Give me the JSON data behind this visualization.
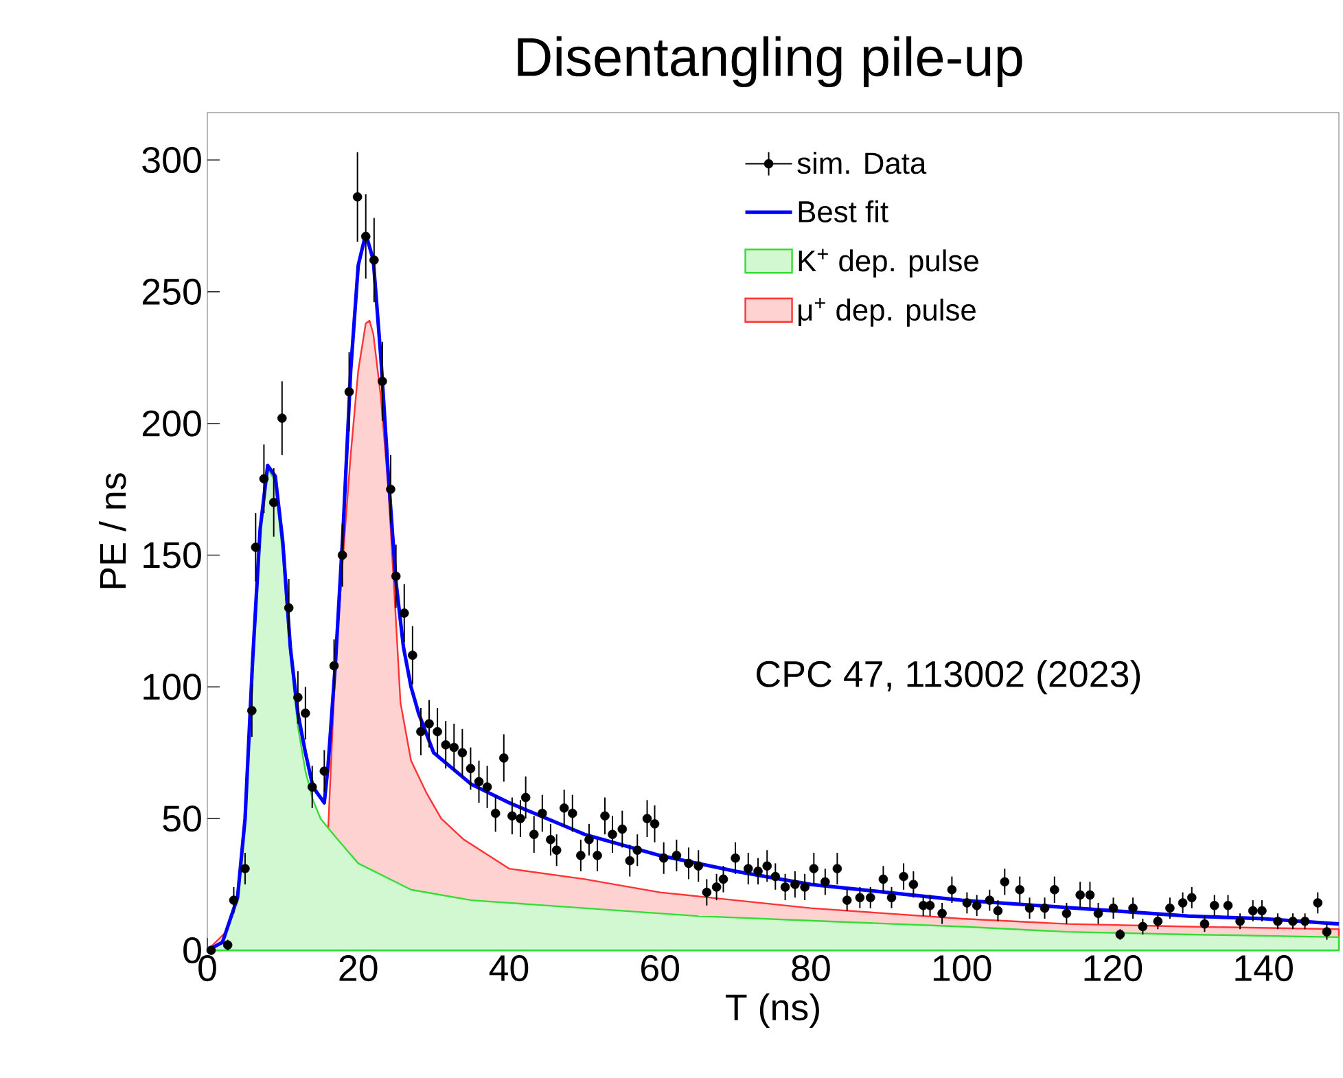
{
  "chart_data": {
    "type": "scatter",
    "title": "Disentangling pile-up",
    "xlabel": "T (ns)",
    "ylabel": "PE / ns",
    "annotations": [
      "CPC 47, 113002 (2023)"
    ],
    "xlim": [
      0,
      150
    ],
    "ylim": [
      0,
      318
    ],
    "xticks": [
      0,
      20,
      40,
      60,
      80,
      100,
      120,
      140
    ],
    "yticks": [
      0,
      50,
      100,
      150,
      200,
      250,
      300
    ],
    "legend": "top right",
    "series": [
      {
        "name": "sim. Data",
        "marker": "circle",
        "color": "#000000",
        "x": [
          0.5,
          2.7,
          3.5,
          5,
          5.9,
          6.4,
          7.5,
          8.8,
          9.9,
          10.8,
          12,
          13,
          13.9,
          15.5,
          16.8,
          17.9,
          18.8,
          19.9,
          21,
          22.1,
          23.2,
          24.3,
          25,
          26.1,
          27.2,
          28.3,
          29.4,
          30.5,
          31.6,
          32.7,
          33.8,
          34.9,
          36,
          37.1,
          38.2,
          39.3,
          40.4,
          41.5,
          42.2,
          43.3,
          44.4,
          45.5,
          46.3,
          47.3,
          48.4,
          49.5,
          50.6,
          51.7,
          52.7,
          53.7,
          55,
          56,
          57,
          58.3,
          59.3,
          60.5,
          62.2,
          63.8,
          65.1,
          66.2,
          67.5,
          68.4,
          70,
          71.7,
          73,
          74.2,
          75.3,
          76.6,
          77.9,
          79.2,
          80.4,
          81.9,
          83.5,
          84.8,
          86.5,
          87.9,
          89.6,
          90.7,
          92.3,
          93.6,
          94.9,
          95.8,
          97.4,
          98.7,
          100.7,
          102,
          103.7,
          104.8,
          105.7,
          107.7,
          109,
          111,
          112.3,
          113.9,
          115.7,
          117,
          118.1,
          120.1,
          121,
          122.7,
          124,
          126,
          127.6,
          129.3,
          130.5,
          132.2,
          133.5,
          135.3,
          136.9,
          138.6,
          139.8,
          141.9,
          143.9,
          145.5,
          147.2,
          148.4
        ],
        "values": [
          0,
          2,
          19,
          31,
          91,
          153,
          179,
          170,
          202,
          130,
          96,
          90,
          62,
          68,
          108,
          150,
          212,
          286,
          271,
          262,
          216,
          175,
          142,
          128,
          112,
          83,
          86,
          83,
          78,
          77,
          75,
          69,
          64,
          62,
          52,
          73,
          51,
          50,
          58,
          44,
          52,
          42,
          38,
          54,
          52,
          36,
          42,
          36,
          51,
          44,
          46,
          34,
          38,
          50,
          48,
          35,
          36,
          33,
          32,
          22,
          24,
          27,
          35,
          31,
          30,
          32,
          28,
          24,
          25,
          24,
          31,
          26,
          31,
          19,
          20,
          20,
          27,
          20,
          28,
          25,
          17,
          17,
          14,
          23,
          18,
          17,
          19,
          15,
          26,
          23,
          16,
          16,
          23,
          14,
          21,
          21,
          14,
          16,
          6,
          16,
          9,
          11,
          16,
          18,
          20,
          10,
          17,
          17,
          11,
          15,
          15,
          11,
          11,
          11,
          18,
          7
        ],
        "errors": [
          1,
          2,
          5,
          6,
          10,
          13,
          13,
          13,
          14,
          11,
          10,
          10,
          8,
          8,
          10,
          12,
          15,
          17,
          16,
          16,
          15,
          13,
          12,
          11,
          11,
          9,
          9,
          9,
          9,
          9,
          9,
          8,
          8,
          8,
          7,
          9,
          7,
          7,
          8,
          7,
          7,
          6,
          6,
          7,
          7,
          6,
          6,
          6,
          7,
          7,
          7,
          6,
          6,
          7,
          7,
          6,
          6,
          6,
          6,
          5,
          5,
          5,
          6,
          6,
          5,
          6,
          5,
          5,
          5,
          5,
          6,
          5,
          6,
          4,
          4,
          4,
          5,
          4,
          5,
          5,
          4,
          4,
          4,
          5,
          4,
          4,
          4,
          4,
          5,
          5,
          4,
          4,
          5,
          4,
          5,
          5,
          4,
          4,
          2,
          4,
          3,
          3,
          4,
          4,
          4,
          3,
          4,
          4,
          3,
          4,
          4,
          3,
          3,
          3,
          4,
          3
        ]
      },
      {
        "name": "Best fit",
        "type": "line",
        "color": "#0000ff",
        "x": [
          0,
          2,
          4,
          5,
          6,
          7,
          8,
          9,
          10,
          11,
          12,
          13,
          14,
          15.5,
          16,
          17,
          18,
          19,
          20,
          21,
          22,
          23,
          24,
          25,
          26,
          27,
          28,
          30,
          35,
          40,
          50,
          60,
          70,
          80,
          90,
          100,
          110,
          120,
          130,
          140,
          150
        ],
        "values": [
          0,
          3,
          20,
          50,
          110,
          160,
          184,
          180,
          155,
          115,
          90,
          75,
          62,
          56,
          70,
          110,
          160,
          220,
          260,
          272,
          262,
          225,
          180,
          140,
          115,
          100,
          90,
          75,
          63,
          56,
          44,
          36,
          30,
          25,
          22,
          19,
          17,
          15,
          13,
          12,
          10
        ]
      },
      {
        "name": "K$^{+}$ dep. pulse",
        "type": "area",
        "color": "#33dd33",
        "x": [
          0,
          2,
          4,
          5,
          6,
          7,
          8,
          9,
          10,
          11,
          12,
          13,
          14,
          15,
          17,
          20,
          27,
          35,
          50,
          65,
          82,
          100,
          114,
          130,
          150
        ],
        "values": [
          0,
          3,
          20,
          50,
          110,
          160,
          183,
          178,
          150,
          112,
          85,
          68,
          57,
          50,
          43,
          33,
          23,
          19,
          16,
          13,
          11,
          9,
          7,
          6,
          5
        ]
      },
      {
        "name": "μ$^{+}$ dep. pulse",
        "type": "area",
        "color": "#ff3333",
        "x": [
          0,
          13,
          14,
          15,
          16,
          17,
          18,
          19,
          20,
          21,
          21.5,
          22,
          23,
          24,
          25,
          25.6,
          27,
          29,
          31,
          34,
          40,
          50,
          60,
          70,
          80,
          90,
          100,
          114,
          130,
          150
        ],
        "values": [
          0,
          null,
          null,
          null,
          45,
          110,
          150,
          188,
          220,
          238,
          239,
          234,
          210,
          175,
          125,
          94,
          72,
          60,
          50,
          42,
          31,
          27,
          22,
          19,
          16,
          14,
          12,
          10,
          9,
          8
        ]
      }
    ]
  }
}
